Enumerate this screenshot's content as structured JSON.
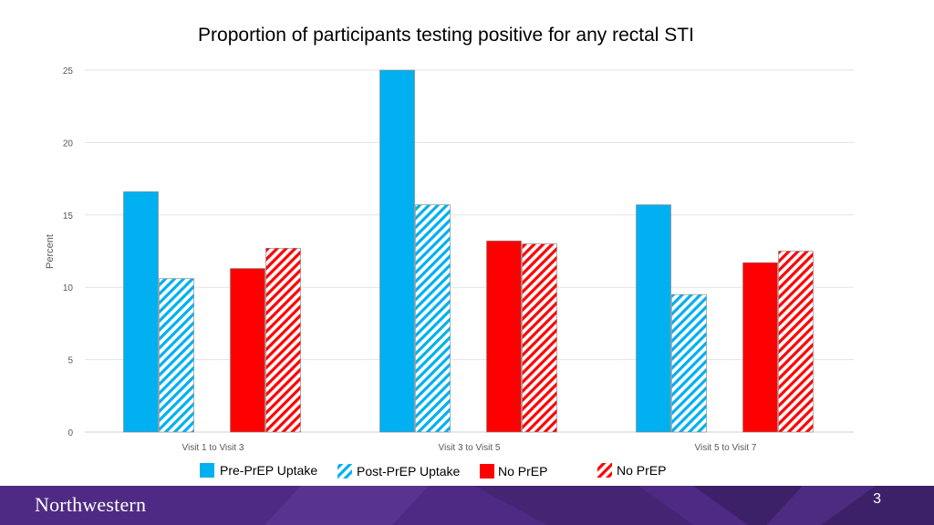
{
  "chart_data": {
    "type": "bar",
    "title": "Proportion of participants testing positive for any rectal STI",
    "xlabel": "",
    "ylabel": "Percent",
    "ylim": [
      0,
      25
    ],
    "yticks": [
      0,
      5,
      10,
      15,
      20,
      25
    ],
    "grid": true,
    "legend_position": "bottom",
    "categories": [
      "Visit 1 to Visit 3",
      "Visit 3 to Visit 5",
      "Visit 5 to Visit 7"
    ],
    "series": [
      {
        "name": "Pre-PrEP Uptake",
        "values": [
          16.6,
          25.0,
          15.7
        ],
        "color": "#00b0f0",
        "pattern": "solid"
      },
      {
        "name": "Post-PrEP Uptake",
        "values": [
          10.6,
          15.7,
          9.5
        ],
        "color": "#00b0f0",
        "pattern": "hatch"
      },
      {
        "name": "No PrEP",
        "values": [
          11.3,
          13.2,
          11.7
        ],
        "color": "#ff0000",
        "pattern": "solid"
      },
      {
        "name": "No PrEP",
        "values": [
          12.7,
          13.0,
          12.5
        ],
        "color": "#ff0000",
        "pattern": "hatch"
      }
    ]
  },
  "footer": {
    "brand": "Northwestern",
    "page_number": "3",
    "brand_color": "#4e2a84"
  }
}
